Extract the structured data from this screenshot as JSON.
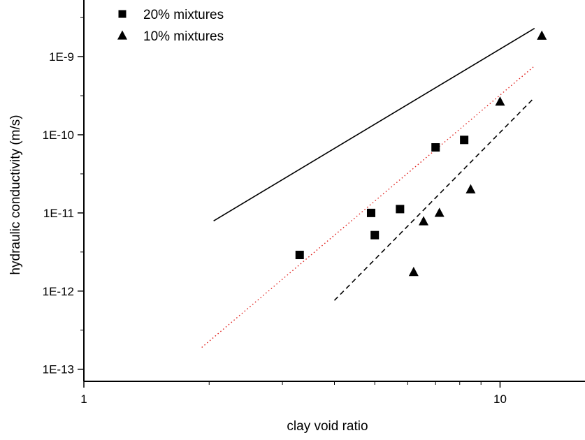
{
  "chart_data": {
    "type": "scatter",
    "xlabel": "clay void ratio",
    "ylabel": "hydraulic conductivity (m/s)",
    "x_scale": "log",
    "y_scale": "log",
    "xlim": [
      1,
      16
    ],
    "ylim": [
      7e-14,
      4.5e-09
    ],
    "x_ticks": [
      {
        "value": 1,
        "label": "1"
      },
      {
        "value": 10,
        "label": "10"
      }
    ],
    "y_ticks": [
      {
        "value": 1e-13,
        "label": "1E-13"
      },
      {
        "value": 1e-12,
        "label": "1E-12"
      },
      {
        "value": 1e-11,
        "label": "1E-11"
      },
      {
        "value": 1e-10,
        "label": "1E-10"
      },
      {
        "value": 1e-09,
        "label": "1E-9"
      }
    ],
    "legend_position": "top-left",
    "series": [
      {
        "name": "20% mixtures",
        "marker": "square",
        "color": "#000000",
        "points": [
          {
            "x": 3.3,
            "y": 2.9e-12
          },
          {
            "x": 4.9,
            "y": 1e-11
          },
          {
            "x": 5.0,
            "y": 5.2e-12
          },
          {
            "x": 5.75,
            "y": 1.12e-11
          },
          {
            "x": 7.0,
            "y": 6.9e-11
          },
          {
            "x": 8.2,
            "y": 8.6e-11
          }
        ]
      },
      {
        "name": "10% mixtures",
        "marker": "triangle",
        "color": "#000000",
        "points": [
          {
            "x": 6.2,
            "y": 1.75e-12
          },
          {
            "x": 6.55,
            "y": 7.8e-12
          },
          {
            "x": 7.15,
            "y": 1e-11
          },
          {
            "x": 8.5,
            "y": 2e-11
          },
          {
            "x": 10.0,
            "y": 2.65e-10
          },
          {
            "x": 12.6,
            "y": 1.85e-09
          }
        ]
      }
    ],
    "lines": [
      {
        "style": "solid",
        "color": "#000000",
        "x": [
          2.05,
          12.1
        ],
        "y": [
          7.9e-12,
          2.3e-09
        ]
      },
      {
        "style": "dotted",
        "color": "#e0201c",
        "x": [
          1.92,
          12.1
        ],
        "y": [
          1.9e-13,
          7.6e-10
        ]
      },
      {
        "style": "dashed",
        "color": "#000000",
        "x": [
          4.0,
          12.1
        ],
        "y": [
          7.6e-13,
          3e-10
        ]
      }
    ]
  }
}
